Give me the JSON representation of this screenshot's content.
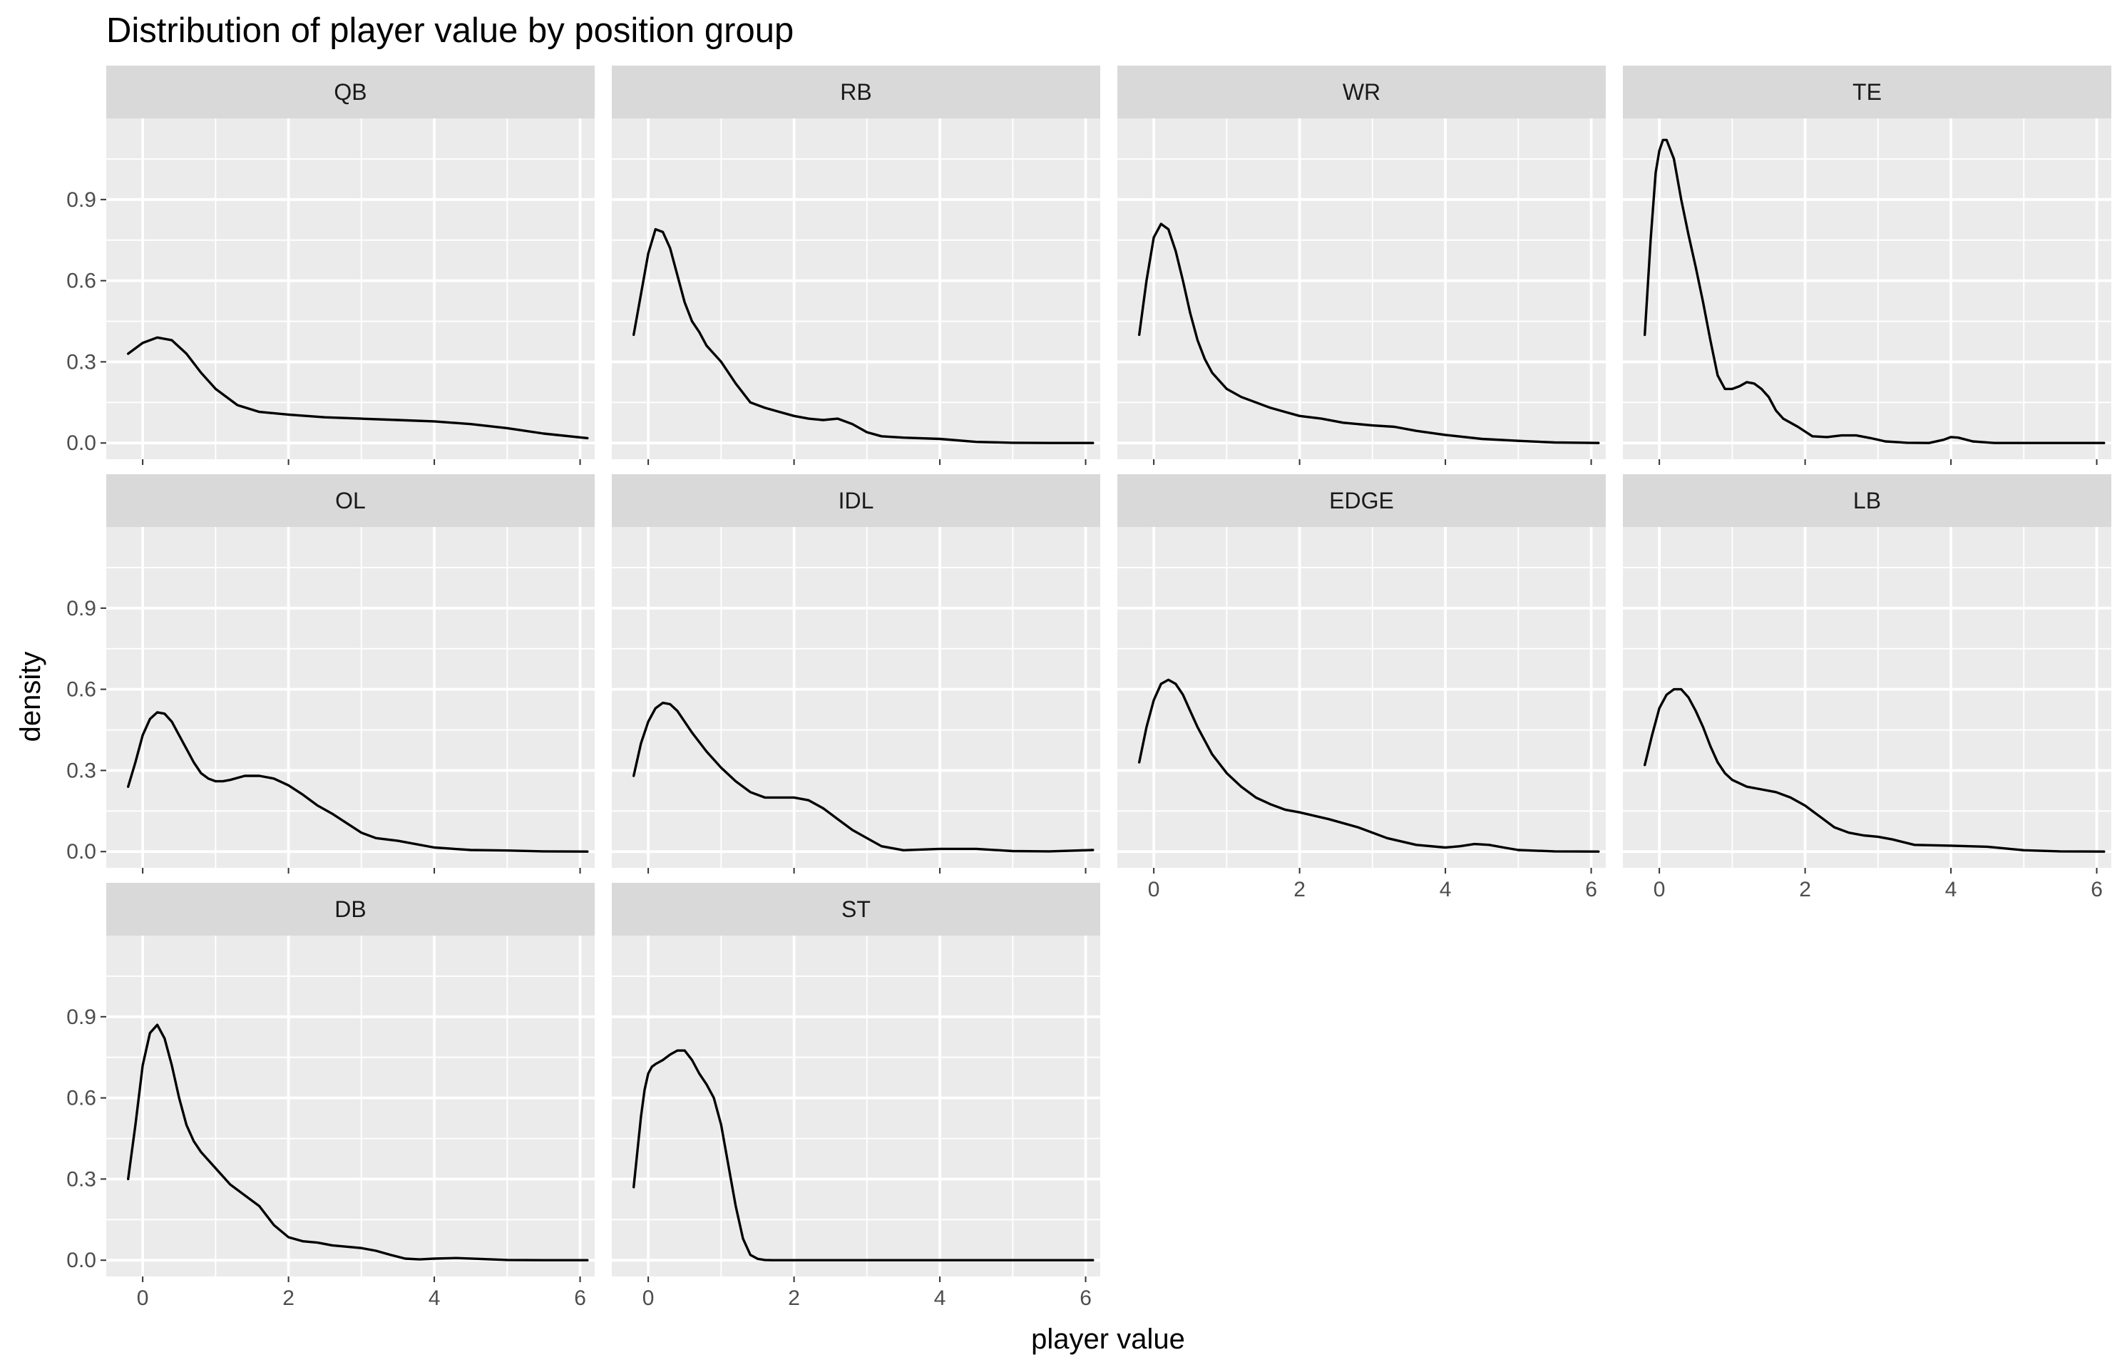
{
  "chart_data": {
    "type": "line",
    "title": "Distribution of player value by position group",
    "xlabel": "player value",
    "ylabel": "density",
    "xlim": [
      -0.5,
      6.2
    ],
    "ylim": [
      -0.06,
      1.2
    ],
    "x_ticks": [
      0,
      2,
      4,
      6
    ],
    "x_tick_labels": [
      "0",
      "2",
      "4",
      "6"
    ],
    "y_ticks": [
      0.0,
      0.3,
      0.6,
      0.9
    ],
    "y_tick_labels": [
      "0.0",
      "0.3",
      "0.6",
      "0.9"
    ],
    "grid": true,
    "facets": [
      {
        "name": "QB",
        "x": [
          -0.2,
          0.0,
          0.2,
          0.4,
          0.6,
          0.8,
          1.0,
          1.3,
          1.6,
          2.0,
          2.5,
          3.0,
          3.5,
          4.0,
          4.5,
          5.0,
          5.5,
          6.1
        ],
        "y": [
          0.33,
          0.37,
          0.39,
          0.38,
          0.33,
          0.26,
          0.2,
          0.14,
          0.115,
          0.105,
          0.095,
          0.09,
          0.085,
          0.08,
          0.07,
          0.055,
          0.035,
          0.018
        ]
      },
      {
        "name": "RB",
        "x": [
          -0.2,
          -0.1,
          0.0,
          0.1,
          0.2,
          0.3,
          0.4,
          0.5,
          0.6,
          0.7,
          0.8,
          0.9,
          1.0,
          1.2,
          1.4,
          1.6,
          1.8,
          2.0,
          2.2,
          2.4,
          2.6,
          2.8,
          3.0,
          3.2,
          3.5,
          4.0,
          4.5,
          5.0,
          5.5,
          6.1
        ],
        "y": [
          0.4,
          0.55,
          0.7,
          0.79,
          0.78,
          0.72,
          0.62,
          0.52,
          0.45,
          0.41,
          0.36,
          0.33,
          0.3,
          0.22,
          0.15,
          0.13,
          0.115,
          0.1,
          0.09,
          0.085,
          0.09,
          0.07,
          0.04,
          0.025,
          0.02,
          0.015,
          0.004,
          0.001,
          0.0,
          0.0
        ]
      },
      {
        "name": "WR",
        "x": [
          -0.2,
          -0.1,
          0.0,
          0.1,
          0.2,
          0.3,
          0.4,
          0.5,
          0.6,
          0.7,
          0.8,
          0.9,
          1.0,
          1.2,
          1.4,
          1.6,
          1.8,
          2.0,
          2.3,
          2.6,
          3.0,
          3.3,
          3.6,
          4.0,
          4.5,
          5.0,
          5.5,
          6.1
        ],
        "y": [
          0.4,
          0.6,
          0.76,
          0.81,
          0.79,
          0.71,
          0.6,
          0.48,
          0.38,
          0.31,
          0.26,
          0.23,
          0.2,
          0.17,
          0.15,
          0.13,
          0.115,
          0.1,
          0.09,
          0.075,
          0.065,
          0.06,
          0.045,
          0.03,
          0.015,
          0.008,
          0.002,
          0.0
        ]
      },
      {
        "name": "TE",
        "x": [
          -0.2,
          -0.12,
          -0.05,
          0.0,
          0.05,
          0.1,
          0.2,
          0.3,
          0.4,
          0.5,
          0.6,
          0.7,
          0.8,
          0.9,
          1.0,
          1.1,
          1.2,
          1.3,
          1.4,
          1.5,
          1.6,
          1.7,
          1.9,
          2.1,
          2.3,
          2.5,
          2.7,
          2.9,
          3.1,
          3.4,
          3.7,
          3.9,
          4.0,
          4.1,
          4.3,
          4.6,
          5.0,
          5.5,
          6.1
        ],
        "y": [
          0.4,
          0.75,
          1.0,
          1.08,
          1.12,
          1.12,
          1.05,
          0.9,
          0.77,
          0.65,
          0.52,
          0.38,
          0.25,
          0.2,
          0.2,
          0.21,
          0.225,
          0.22,
          0.2,
          0.17,
          0.12,
          0.09,
          0.06,
          0.025,
          0.022,
          0.028,
          0.028,
          0.018,
          0.006,
          0.001,
          0.0,
          0.012,
          0.022,
          0.02,
          0.006,
          0.0,
          0.0,
          0.0,
          0.0
        ]
      },
      {
        "name": "OL",
        "x": [
          -0.2,
          -0.1,
          0.0,
          0.1,
          0.2,
          0.3,
          0.4,
          0.5,
          0.6,
          0.7,
          0.8,
          0.9,
          1.0,
          1.1,
          1.2,
          1.4,
          1.6,
          1.8,
          2.0,
          2.2,
          2.4,
          2.6,
          2.8,
          3.0,
          3.2,
          3.5,
          4.0,
          4.5,
          5.0,
          5.5,
          6.1
        ],
        "y": [
          0.24,
          0.33,
          0.43,
          0.49,
          0.515,
          0.51,
          0.48,
          0.43,
          0.38,
          0.33,
          0.29,
          0.27,
          0.26,
          0.26,
          0.265,
          0.28,
          0.28,
          0.27,
          0.245,
          0.21,
          0.17,
          0.14,
          0.105,
          0.07,
          0.05,
          0.04,
          0.015,
          0.006,
          0.004,
          0.001,
          0.0
        ]
      },
      {
        "name": "IDL",
        "x": [
          -0.2,
          -0.1,
          0.0,
          0.1,
          0.2,
          0.3,
          0.4,
          0.5,
          0.6,
          0.8,
          1.0,
          1.2,
          1.4,
          1.6,
          1.8,
          2.0,
          2.2,
          2.4,
          2.6,
          2.8,
          3.0,
          3.2,
          3.5,
          4.0,
          4.5,
          5.0,
          5.5,
          6.1
        ],
        "y": [
          0.28,
          0.4,
          0.48,
          0.53,
          0.55,
          0.545,
          0.52,
          0.48,
          0.44,
          0.37,
          0.31,
          0.26,
          0.22,
          0.2,
          0.2,
          0.2,
          0.19,
          0.16,
          0.12,
          0.08,
          0.05,
          0.02,
          0.005,
          0.01,
          0.01,
          0.002,
          0.001,
          0.006
        ]
      },
      {
        "name": "EDGE",
        "x": [
          -0.2,
          -0.1,
          0.0,
          0.1,
          0.2,
          0.3,
          0.4,
          0.5,
          0.6,
          0.8,
          1.0,
          1.2,
          1.4,
          1.6,
          1.8,
          2.0,
          2.4,
          2.8,
          3.2,
          3.6,
          4.0,
          4.2,
          4.4,
          4.6,
          4.8,
          5.0,
          5.5,
          6.1
        ],
        "y": [
          0.33,
          0.46,
          0.56,
          0.62,
          0.635,
          0.62,
          0.58,
          0.52,
          0.46,
          0.36,
          0.29,
          0.24,
          0.2,
          0.175,
          0.155,
          0.145,
          0.12,
          0.09,
          0.05,
          0.025,
          0.015,
          0.02,
          0.028,
          0.025,
          0.015,
          0.006,
          0.001,
          0.0
        ]
      },
      {
        "name": "LB",
        "x": [
          -0.2,
          -0.1,
          0.0,
          0.1,
          0.2,
          0.3,
          0.4,
          0.5,
          0.6,
          0.7,
          0.8,
          0.9,
          1.0,
          1.2,
          1.4,
          1.6,
          1.8,
          2.0,
          2.2,
          2.4,
          2.6,
          2.8,
          3.0,
          3.2,
          3.5,
          4.0,
          4.5,
          5.0,
          5.5,
          6.1
        ],
        "y": [
          0.32,
          0.43,
          0.53,
          0.58,
          0.6,
          0.6,
          0.57,
          0.52,
          0.46,
          0.39,
          0.33,
          0.29,
          0.265,
          0.24,
          0.23,
          0.22,
          0.2,
          0.17,
          0.13,
          0.09,
          0.07,
          0.06,
          0.055,
          0.045,
          0.025,
          0.022,
          0.018,
          0.005,
          0.001,
          0.0
        ]
      },
      {
        "name": "DB",
        "x": [
          -0.2,
          -0.1,
          0.0,
          0.1,
          0.2,
          0.3,
          0.4,
          0.5,
          0.6,
          0.7,
          0.8,
          0.9,
          1.0,
          1.2,
          1.4,
          1.6,
          1.8,
          2.0,
          2.2,
          2.4,
          2.6,
          2.8,
          3.0,
          3.2,
          3.4,
          3.6,
          3.8,
          4.0,
          4.3,
          4.6,
          5.0,
          5.5,
          6.1
        ],
        "y": [
          0.3,
          0.5,
          0.72,
          0.84,
          0.87,
          0.82,
          0.72,
          0.6,
          0.5,
          0.44,
          0.4,
          0.37,
          0.34,
          0.28,
          0.24,
          0.2,
          0.13,
          0.085,
          0.07,
          0.065,
          0.055,
          0.05,
          0.045,
          0.035,
          0.02,
          0.006,
          0.003,
          0.006,
          0.008,
          0.005,
          0.001,
          0.0,
          0.0
        ]
      },
      {
        "name": "ST",
        "x": [
          -0.2,
          -0.15,
          -0.1,
          -0.05,
          0.0,
          0.05,
          0.1,
          0.2,
          0.3,
          0.4,
          0.5,
          0.6,
          0.7,
          0.8,
          0.9,
          1.0,
          1.1,
          1.2,
          1.3,
          1.4,
          1.5,
          1.6,
          1.7,
          1.8,
          2.0,
          2.5,
          3.0,
          4.0,
          5.0,
          6.1
        ],
        "y": [
          0.27,
          0.4,
          0.53,
          0.63,
          0.69,
          0.715,
          0.725,
          0.74,
          0.76,
          0.775,
          0.775,
          0.74,
          0.69,
          0.65,
          0.6,
          0.5,
          0.35,
          0.2,
          0.08,
          0.02,
          0.005,
          0.001,
          0.0,
          0.0,
          0.0,
          0.0,
          0.0,
          0.0,
          0.0,
          0.0
        ]
      }
    ]
  }
}
